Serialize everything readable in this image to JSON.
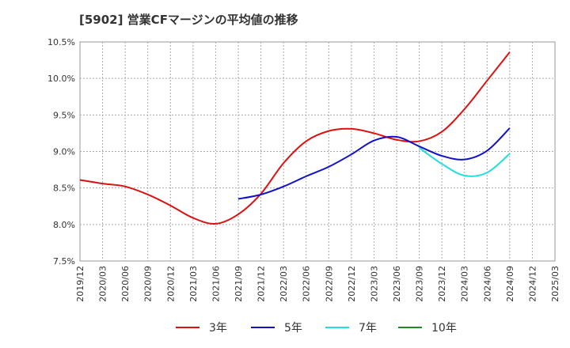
{
  "chart_data": {
    "type": "line",
    "title": "[5902]  営業CFマージンの平均値の推移",
    "xlabel": "",
    "ylabel": "",
    "ylim": [
      7.5,
      10.5
    ],
    "x_ticks": [
      "2019/12",
      "2020/03",
      "2020/06",
      "2020/09",
      "2020/12",
      "2021/03",
      "2021/06",
      "2021/09",
      "2021/12",
      "2022/03",
      "2022/06",
      "2022/09",
      "2022/12",
      "2023/03",
      "2023/06",
      "2023/09",
      "2023/12",
      "2024/03",
      "2024/06",
      "2024/09",
      "2024/12",
      "2025/03"
    ],
    "y_ticks": [
      "7.5%",
      "8.0%",
      "8.5%",
      "9.0%",
      "9.5%",
      "10.0%",
      "10.5%"
    ],
    "grid": true,
    "legend_position": "bottom",
    "series": [
      {
        "name": "3年",
        "color": "#dd1111",
        "x": [
          "2019/12",
          "2020/03",
          "2020/06",
          "2020/09",
          "2020/12",
          "2021/03",
          "2021/06",
          "2021/09",
          "2021/12",
          "2022/03",
          "2022/06",
          "2022/09",
          "2022/12",
          "2023/03",
          "2023/06",
          "2023/09",
          "2023/12",
          "2024/03",
          "2024/06",
          "2024/09"
        ],
        "values": [
          8.61,
          8.56,
          8.52,
          8.41,
          8.26,
          8.09,
          8.01,
          8.14,
          8.42,
          8.84,
          9.14,
          9.28,
          9.31,
          9.25,
          9.16,
          9.14,
          9.27,
          9.58,
          9.97,
          10.36
        ]
      },
      {
        "name": "5年",
        "color": "#1111cc",
        "x": [
          "2021/09",
          "2021/12",
          "2022/03",
          "2022/06",
          "2022/09",
          "2022/12",
          "2023/03",
          "2023/06",
          "2023/09",
          "2023/12",
          "2024/03",
          "2024/06",
          "2024/09"
        ],
        "values": [
          8.35,
          8.41,
          8.52,
          8.66,
          8.79,
          8.96,
          9.15,
          9.2,
          9.07,
          8.94,
          8.89,
          9.01,
          9.32
        ]
      },
      {
        "name": "7年",
        "color": "#22dddd",
        "x": [
          "2023/09",
          "2023/12",
          "2024/03",
          "2024/06",
          "2024/09"
        ],
        "values": [
          9.05,
          8.83,
          8.67,
          8.71,
          8.97
        ]
      },
      {
        "name": "10年",
        "color": "#228822",
        "x": [],
        "values": []
      }
    ]
  }
}
